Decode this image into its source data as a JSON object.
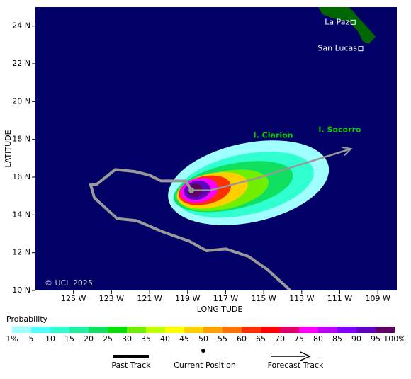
{
  "chart_data": {
    "type": "probability-map",
    "xlabel": "LONGITUDE",
    "ylabel": "LATITUDE",
    "xlim": [
      -127,
      -108
    ],
    "ylim": [
      10,
      25
    ],
    "xticks": [
      {
        "value": -125,
        "label": "125 W"
      },
      {
        "value": -123,
        "label": "123 W"
      },
      {
        "value": -121,
        "label": "121 W"
      },
      {
        "value": -119,
        "label": "119 W"
      },
      {
        "value": -117,
        "label": "117 W"
      },
      {
        "value": -115,
        "label": "115 W"
      },
      {
        "value": -113,
        "label": "113 W"
      },
      {
        "value": -111,
        "label": "111 W"
      },
      {
        "value": -109,
        "label": "109 W"
      }
    ],
    "yticks": [
      {
        "value": 10,
        "label": "10 N"
      },
      {
        "value": 12,
        "label": "12 N"
      },
      {
        "value": 14,
        "label": "14 N"
      },
      {
        "value": 16,
        "label": "16 N"
      },
      {
        "value": 18,
        "label": "18 N"
      },
      {
        "value": 20,
        "label": "20 N"
      },
      {
        "value": 22,
        "label": "22 N"
      },
      {
        "value": 24,
        "label": "24 N"
      }
    ],
    "credit": "© UCL 2025",
    "places": [
      {
        "name": "La Paz",
        "lon": -110.3,
        "lat": 24.2,
        "color": "#ffffff"
      },
      {
        "name": "San Lucas",
        "lon": -109.9,
        "lat": 22.8,
        "color": "#ffffff"
      },
      {
        "name": "I. Clarion",
        "lon": -114.5,
        "lat": 18.2,
        "color": "#00d000"
      },
      {
        "name": "I. Socorro",
        "lon": -111.0,
        "lat": 18.5,
        "color": "#00d000"
      }
    ],
    "field": [
      {
        "level": 1,
        "lon": -115.8,
        "lat": 15.7,
        "rx": 4.3,
        "ry": 2.1
      },
      {
        "level": 10,
        "lon": -116.0,
        "lat": 15.6,
        "rx": 3.7,
        "ry": 1.6
      },
      {
        "level": 20,
        "lon": -116.6,
        "lat": 15.5,
        "rx": 3.2,
        "ry": 1.2
      },
      {
        "level": 30,
        "lon": -117.1,
        "lat": 15.3,
        "rx": 2.4,
        "ry": 1.0
      },
      {
        "level": 45,
        "lon": -117.7,
        "lat": 15.3,
        "rx": 1.9,
        "ry": 0.9
      },
      {
        "level": 60,
        "lon": -118.1,
        "lat": 15.3,
        "rx": 1.4,
        "ry": 0.75
      },
      {
        "level": 75,
        "lon": -118.4,
        "lat": 15.3,
        "rx": 1.0,
        "ry": 0.65
      },
      {
        "level": 90,
        "lon": -118.5,
        "lat": 15.3,
        "rx": 0.7,
        "ry": 0.5
      },
      {
        "level": 95,
        "lon": -118.6,
        "lat": 15.3,
        "rx": 0.4,
        "ry": 0.35
      }
    ],
    "past_track": {
      "lon": [
        -113.6,
        -114.8,
        -115.8,
        -117.0,
        -118.0,
        -118.9,
        -120.3,
        -121.7,
        -122.7,
        -123.9,
        -124.1,
        -123.8,
        -122.8,
        -121.8,
        -121.0,
        -120.4,
        -119.1,
        -118.8
      ],
      "lat": [
        10.0,
        11.1,
        11.8,
        12.2,
        12.1,
        12.6,
        13.1,
        13.7,
        13.8,
        14.9,
        15.6,
        15.6,
        16.4,
        16.3,
        16.1,
        15.8,
        15.8,
        15.3
      ]
    },
    "current_position": {
      "lon": -118.8,
      "lat": 15.3
    },
    "forecast_track": {
      "lon": [
        -118.8,
        -117.8,
        -115.5,
        -110.4
      ],
      "lat": [
        15.3,
        15.3,
        15.9,
        17.5
      ]
    },
    "colorbar": {
      "title": "Probability",
      "ticks": [
        {
          "value": 1,
          "label": "1%"
        },
        5,
        10,
        15,
        20,
        25,
        30,
        35,
        40,
        45,
        50,
        55,
        60,
        65,
        70,
        75,
        80,
        85,
        90,
        95,
        {
          "value": 100,
          "label": "100%"
        }
      ],
      "colors": [
        "#a0ffff",
        "#50ffff",
        "#30ffd0",
        "#20f0a0",
        "#10e060",
        "#00e000",
        "#70f000",
        "#c0ff00",
        "#ffff00",
        "#ffd000",
        "#ffa000",
        "#ff7000",
        "#ff3000",
        "#ff0000",
        "#e0006a",
        "#ff00ff",
        "#c000ff",
        "#8000ff",
        "#6000c0",
        "#600060"
      ]
    },
    "legend": [
      "Past Track",
      "Current Position",
      "Forecast Track"
    ]
  }
}
